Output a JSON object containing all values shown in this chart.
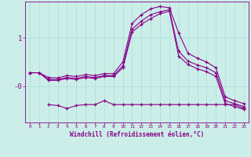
{
  "background_color": "#cceee8",
  "grid_color": "#aaddda",
  "line_color": "#880088",
  "x_ticks": [
    0,
    1,
    2,
    3,
    4,
    5,
    6,
    7,
    8,
    9,
    10,
    11,
    12,
    13,
    14,
    15,
    16,
    17,
    18,
    19,
    20,
    21,
    22,
    23
  ],
  "xlabel": "Windchill (Refroidissement éolien,°C)",
  "ylim": [
    -0.75,
    1.75
  ],
  "yticks": [
    0.0,
    1.0
  ],
  "ytick_labels": [
    "-0",
    "1"
  ],
  "series1_x": [
    0,
    1,
    2,
    3,
    4,
    5,
    6,
    7,
    8,
    9,
    10,
    11,
    12,
    13,
    14,
    15,
    16,
    17,
    18,
    19,
    20,
    21,
    22,
    23
  ],
  "series1_y": [
    0.28,
    0.28,
    0.18,
    0.17,
    0.22,
    0.2,
    0.24,
    0.22,
    0.26,
    0.26,
    0.5,
    1.3,
    1.48,
    1.6,
    1.65,
    1.62,
    1.1,
    0.68,
    0.58,
    0.5,
    0.38,
    -0.22,
    -0.3,
    -0.36
  ],
  "series2_x": [
    0,
    1,
    2,
    3,
    4,
    5,
    6,
    7,
    8,
    9,
    10,
    11,
    12,
    13,
    14,
    15,
    16,
    17,
    18,
    19,
    20,
    21,
    22,
    23
  ],
  "series2_y": [
    0.28,
    0.28,
    0.14,
    0.14,
    0.18,
    0.16,
    0.2,
    0.18,
    0.22,
    0.22,
    0.42,
    1.18,
    1.35,
    1.48,
    1.54,
    1.58,
    0.72,
    0.52,
    0.44,
    0.38,
    0.28,
    -0.3,
    -0.36,
    -0.42
  ],
  "series3_x": [
    0,
    1,
    2,
    3,
    4,
    5,
    6,
    7,
    8,
    9,
    10,
    11,
    12,
    13,
    14,
    15,
    16,
    17,
    18,
    19,
    20,
    21,
    22,
    23
  ],
  "series3_y": [
    0.28,
    0.28,
    0.12,
    0.12,
    0.16,
    0.14,
    0.18,
    0.16,
    0.2,
    0.2,
    0.38,
    1.12,
    1.28,
    1.4,
    1.5,
    1.55,
    0.62,
    0.45,
    0.36,
    0.3,
    0.2,
    -0.36,
    -0.42,
    -0.48
  ],
  "series4_x": [
    2,
    3,
    4,
    5,
    6,
    7,
    8,
    9,
    10,
    11,
    12,
    13,
    14,
    15,
    16,
    17,
    18,
    19,
    20,
    21,
    22,
    23
  ],
  "series4_y": [
    -0.38,
    -0.4,
    -0.46,
    -0.4,
    -0.38,
    -0.38,
    -0.3,
    -0.38,
    -0.38,
    -0.38,
    -0.38,
    -0.38,
    -0.38,
    -0.38,
    -0.38,
    -0.38,
    -0.38,
    -0.38,
    -0.38,
    -0.38,
    -0.38,
    -0.46
  ]
}
